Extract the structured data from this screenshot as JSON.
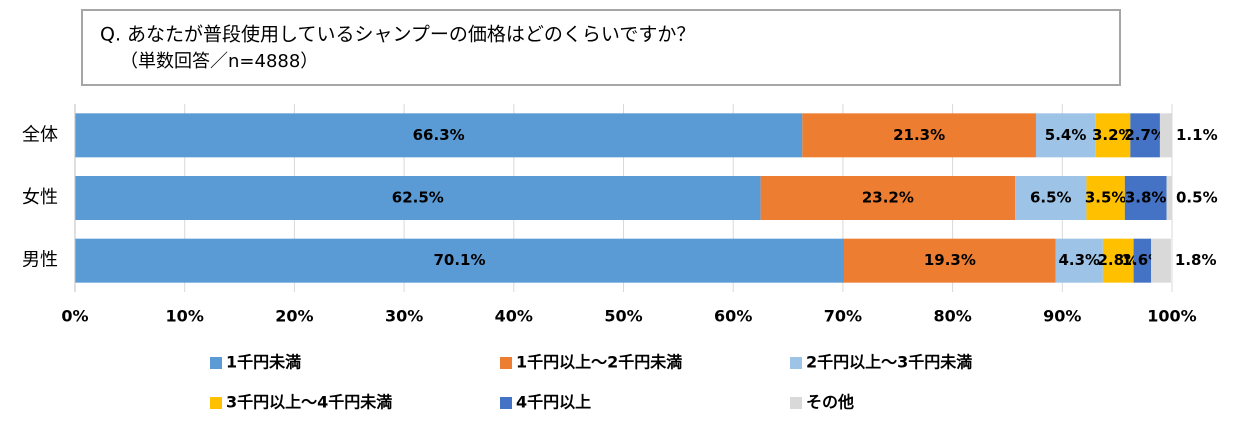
{
  "chart_data": {
    "type": "stacked-bar-horizontal",
    "title": "Q. あなたが普段使用しているシャンプーの価格はどのくらいですか？",
    "subtitle": "（単数回答／n=4888）",
    "categories": [
      "全体",
      "女性",
      "男性"
    ],
    "series": [
      {
        "name": "1千円未満",
        "color": "#5b9bd5",
        "values": [
          66.3,
          62.5,
          70.1
        ],
        "value_labels": [
          "66.3%",
          "62.5%",
          "70.1%"
        ]
      },
      {
        "name": "1千円以上～2千円未満",
        "color": "#ed7d31",
        "values": [
          21.3,
          23.2,
          19.3
        ],
        "value_labels": [
          "21.3%",
          "23.2%",
          "19.3%"
        ]
      },
      {
        "name": "2千円以上～3千円未満",
        "color": "#9dc3e6",
        "values": [
          5.4,
          6.5,
          4.3
        ],
        "value_labels": [
          "5.4%",
          "6.5%",
          "4.3%"
        ]
      },
      {
        "name": "3千円以上～4千円未満",
        "color": "#ffc000",
        "values": [
          3.2,
          3.5,
          2.8
        ],
        "value_labels": [
          "3.2%",
          "3.5%",
          "2.8%"
        ]
      },
      {
        "name": "4千円以上",
        "color": "#4472c4",
        "values": [
          2.7,
          3.8,
          1.6
        ],
        "value_labels": [
          "2.7%",
          "3.8%",
          "1.6%"
        ]
      },
      {
        "name": "その他",
        "color": "#d9d9d9",
        "values": [
          1.1,
          0.5,
          1.8
        ],
        "value_labels": [
          "1.1%",
          "0.5%",
          "1.8%"
        ]
      }
    ],
    "xlim": [
      0,
      100
    ],
    "xticks": [
      {
        "value": 0,
        "label": "0%"
      },
      {
        "value": 10,
        "label": "10%"
      },
      {
        "value": 20,
        "label": "20%"
      },
      {
        "value": 30,
        "label": "30%"
      },
      {
        "value": 40,
        "label": "40%"
      },
      {
        "value": 50,
        "label": "50%"
      },
      {
        "value": 60,
        "label": "60%"
      },
      {
        "value": 70,
        "label": "70%"
      },
      {
        "value": 80,
        "label": "80%"
      },
      {
        "value": 90,
        "label": "90%"
      },
      {
        "value": 100,
        "label": "100%"
      }
    ],
    "grid": true
  }
}
